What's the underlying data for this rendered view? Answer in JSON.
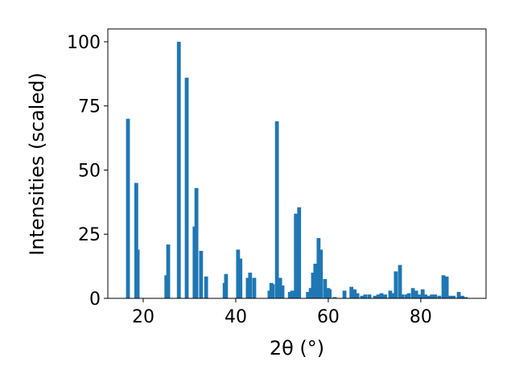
{
  "chart_data": {
    "type": "bar",
    "color": "#1f77b4",
    "xlabel": "2θ (°)",
    "ylabel": "Intensities (scaled)",
    "x": [
      16.7,
      18.5,
      18.8,
      25.0,
      25.4,
      27.7,
      29.4,
      31.1,
      31.5,
      32.5,
      33.6,
      37.6,
      37.9,
      40.5,
      41.0,
      42.6,
      43.1,
      44.0,
      47.3,
      47.7,
      48.0,
      48.9,
      49.6,
      50.1,
      51.7,
      52.2,
      53.0,
      53.7,
      55.6,
      56.2,
      56.7,
      57.2,
      57.9,
      58.4,
      59.3,
      60.0,
      60.3,
      61.4,
      63.5,
      65.0,
      65.7,
      66.3,
      67.3,
      68.0,
      68.9,
      70.1,
      70.8,
      71.5,
      72.3,
      73.4,
      73.9,
      74.6,
      75.5,
      76.0,
      76.9,
      77.4,
      78.3,
      79.0,
      79.7,
      80.4,
      81.0,
      81.7,
      82.4,
      83.1,
      84.0,
      84.9,
      85.6,
      86.3,
      87.1,
      88.2,
      89.0,
      89.7
    ],
    "values": [
      70,
      45,
      19,
      9,
      21,
      100,
      86,
      28,
      43,
      18.5,
      8.5,
      6,
      9.5,
      19,
      15.5,
      8,
      10,
      8,
      3,
      6,
      5.5,
      69,
      8,
      5,
      2.5,
      3,
      33,
      35.5,
      2.5,
      4,
      10,
      13.5,
      23.5,
      19,
      7.5,
      4,
      3.5,
      0.5,
      3,
      4.5,
      3.5,
      2,
      1,
      1.5,
      1.5,
      1,
      1.5,
      2,
      1.5,
      3,
      2,
      10.5,
      13,
      1.5,
      1.5,
      2,
      4,
      3,
      1.5,
      3.5,
      1.5,
      1,
      1.5,
      1.5,
      1,
      9,
      8.5,
      1,
      1,
      2.5,
      1,
      0.5
    ],
    "xlim": [
      12.35,
      94.1
    ],
    "ylim": [
      0,
      105
    ],
    "xticks": [
      20,
      40,
      60,
      80
    ],
    "yticks": [
      0,
      25,
      50,
      75,
      100
    ]
  }
}
